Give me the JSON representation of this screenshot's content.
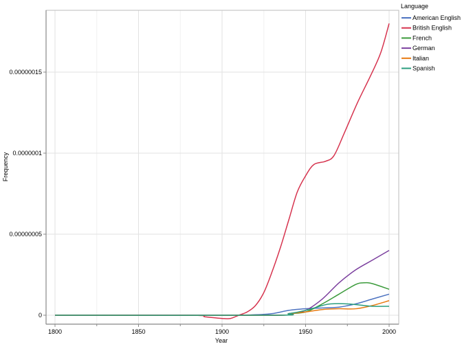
{
  "chart_data": {
    "type": "line",
    "xlabel": "Year",
    "ylabel": "Frequency",
    "xlim": [
      1795,
      2006
    ],
    "ylim": [
      -5e-09,
      1.88e-07
    ],
    "x_ticks": [
      1800,
      1850,
      1900,
      1950,
      2000
    ],
    "y_ticks": [
      0,
      5e-08,
      1e-07,
      1.5e-07
    ],
    "y_tick_labels": [
      "0",
      "0.00000005",
      "0.0000001",
      "0.00000015"
    ],
    "grid": true,
    "legend_title": "Language",
    "legend_position": "right",
    "series": [
      {
        "name": "American English",
        "color": "#4c72c0",
        "points": [
          [
            1800,
            0
          ],
          [
            1900,
            0
          ],
          [
            1920,
            3e-10
          ],
          [
            1930,
            1e-09
          ],
          [
            1940,
            3e-09
          ],
          [
            1950,
            4e-09
          ],
          [
            1960,
            4.5e-09
          ],
          [
            1970,
            5e-09
          ],
          [
            1980,
            7e-09
          ],
          [
            1990,
            1e-08
          ],
          [
            2000,
            1.3e-08
          ]
        ]
      },
      {
        "name": "British English",
        "color": "#d6334e",
        "points": [
          [
            1800,
            0
          ],
          [
            1880,
            0
          ],
          [
            1890,
            -1e-09
          ],
          [
            1900,
            -2e-09
          ],
          [
            1905,
            -2e-09
          ],
          [
            1910,
            0
          ],
          [
            1915,
            2e-09
          ],
          [
            1920,
            6e-09
          ],
          [
            1925,
            1.4e-08
          ],
          [
            1930,
            2.7e-08
          ],
          [
            1935,
            4.2e-08
          ],
          [
            1940,
            5.9e-08
          ],
          [
            1945,
            7.6e-08
          ],
          [
            1950,
            8.6e-08
          ],
          [
            1955,
            9.3e-08
          ],
          [
            1962,
            9.5e-08
          ],
          [
            1967,
            9.85e-08
          ],
          [
            1973,
            1.12e-07
          ],
          [
            1981,
            1.31e-07
          ],
          [
            1989,
            1.48e-07
          ],
          [
            1995,
            1.62e-07
          ],
          [
            2000,
            1.8e-07
          ]
        ]
      },
      {
        "name": "French",
        "color": "#3a9a3a",
        "points": [
          [
            1800,
            0
          ],
          [
            1930,
            0
          ],
          [
            1940,
            1e-09
          ],
          [
            1950,
            2e-09
          ],
          [
            1960,
            7e-09
          ],
          [
            1970,
            1.3e-08
          ],
          [
            1980,
            1.9e-08
          ],
          [
            1985,
            2e-08
          ],
          [
            1990,
            1.95e-08
          ],
          [
            2000,
            1.6e-08
          ]
        ]
      },
      {
        "name": "German",
        "color": "#7b3f9e",
        "points": [
          [
            1800,
            0
          ],
          [
            1930,
            0
          ],
          [
            1940,
            1e-09
          ],
          [
            1950,
            3e-09
          ],
          [
            1960,
            1e-08
          ],
          [
            1970,
            2e-08
          ],
          [
            1980,
            2.8e-08
          ],
          [
            1990,
            3.4e-08
          ],
          [
            2000,
            4e-08
          ]
        ]
      },
      {
        "name": "Italian",
        "color": "#e87a10",
        "points": [
          [
            1800,
            0
          ],
          [
            1930,
            0
          ],
          [
            1940,
            1e-09
          ],
          [
            1950,
            2e-09
          ],
          [
            1960,
            3.5e-09
          ],
          [
            1970,
            4e-09
          ],
          [
            1980,
            4e-09
          ],
          [
            1990,
            6e-09
          ],
          [
            2000,
            9e-09
          ]
        ]
      },
      {
        "name": "Spanish",
        "color": "#2a9d7e",
        "points": [
          [
            1800,
            0
          ],
          [
            1930,
            0
          ],
          [
            1940,
            1e-09
          ],
          [
            1950,
            3e-09
          ],
          [
            1960,
            6e-09
          ],
          [
            1965,
            7e-09
          ],
          [
            1975,
            7e-09
          ],
          [
            1985,
            6e-09
          ],
          [
            1990,
            5.5e-09
          ],
          [
            2000,
            5.5e-09
          ]
        ]
      }
    ]
  }
}
